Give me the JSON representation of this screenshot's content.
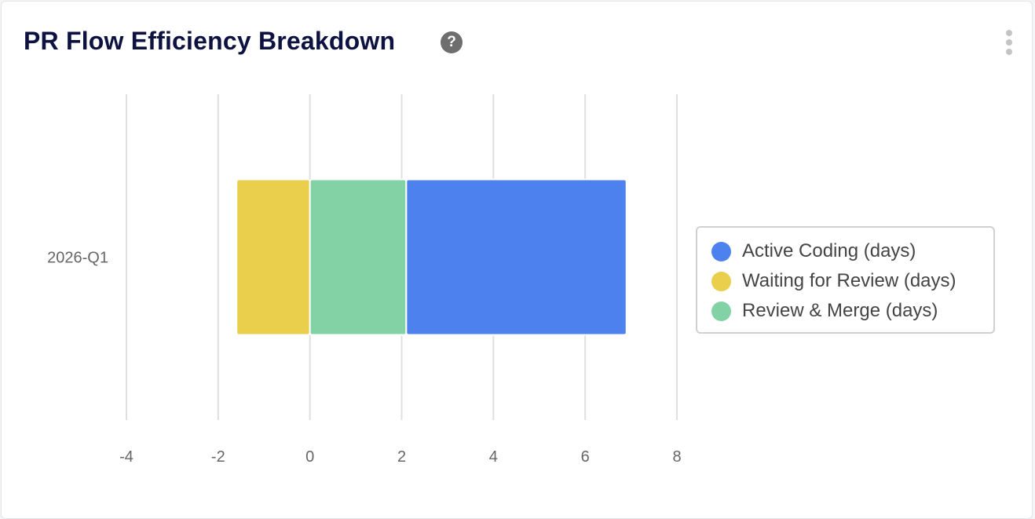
{
  "card": {
    "title": "PR Flow Efficiency Breakdown",
    "help_icon": "help-circle-icon",
    "menu_icon": "more-vertical-icon"
  },
  "chart_data": {
    "type": "bar",
    "orientation": "horizontal",
    "stacked": true,
    "categories": [
      "2026-Q1"
    ],
    "series": [
      {
        "name": "Active Coding (days)",
        "color": "#4d82ee",
        "values": [
          4.8
        ]
      },
      {
        "name": "Waiting for Review (days)",
        "color": "#e9cf4b",
        "values": [
          -1.6
        ]
      },
      {
        "name": "Review & Merge (days)",
        "color": "#82d2a5",
        "values": [
          2.1
        ]
      }
    ],
    "stack_order": [
      1,
      2,
      0
    ],
    "xlim": [
      -4,
      8
    ],
    "xticks": [
      "-4",
      "-2",
      "0",
      "2",
      "4",
      "6",
      "8"
    ],
    "grid": true,
    "legend_position": "right"
  }
}
